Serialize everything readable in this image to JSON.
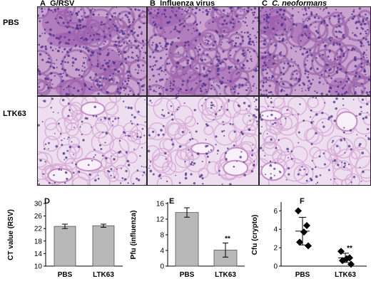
{
  "panels": {
    "A": {
      "letter": "A",
      "title": "G/RSV"
    },
    "B": {
      "letter": "B",
      "title": "Influenza virus"
    },
    "C": {
      "letter": "C",
      "title": "C. neoformans"
    }
  },
  "rows": [
    "PBS",
    "LTK63"
  ],
  "colors": {
    "bar_fill": "#b8b8b8",
    "tissue_dense": "#9c5fae",
    "tissue_light": "#eedff0",
    "nuclei": "#4a2f8a"
  },
  "chart_data": [
    {
      "type": "bar",
      "panel": "D",
      "categories": [
        "PBS",
        "LTK63"
      ],
      "values": [
        22.7,
        22.9
      ],
      "errors": [
        0.7,
        0.5
      ],
      "ylabel": "CT value (RSV)",
      "ylim": [
        10,
        30
      ],
      "yticks": [
        10,
        14,
        18,
        22,
        26,
        30
      ],
      "significance": [
        "",
        ""
      ]
    },
    {
      "type": "bar",
      "panel": "E",
      "categories": [
        "PBS",
        "LTK63"
      ],
      "values": [
        13.7,
        4.1
      ],
      "errors": [
        1.2,
        1.8
      ],
      "ylabel": "Pfu (influenza)",
      "ylim": [
        0,
        16
      ],
      "yticks": [
        0,
        4,
        8,
        12,
        16
      ],
      "significance": [
        "",
        "**"
      ]
    },
    {
      "type": "scatter",
      "panel": "F",
      "categories": [
        "PBS",
        "LTK63"
      ],
      "points": [
        [
          6.0,
          4.4,
          3.7,
          2.6,
          2.2
        ],
        [
          1.6,
          0.9,
          0.8,
          0.6,
          0.2
        ]
      ],
      "means": [
        3.8,
        0.9
      ],
      "sd": [
        1.5,
        0.5
      ],
      "ylabel": "Cfu (crypto)",
      "ylim": [
        0,
        6.8
      ],
      "yticks": [
        0,
        2,
        4,
        6
      ],
      "significance": [
        "",
        "**"
      ]
    }
  ]
}
